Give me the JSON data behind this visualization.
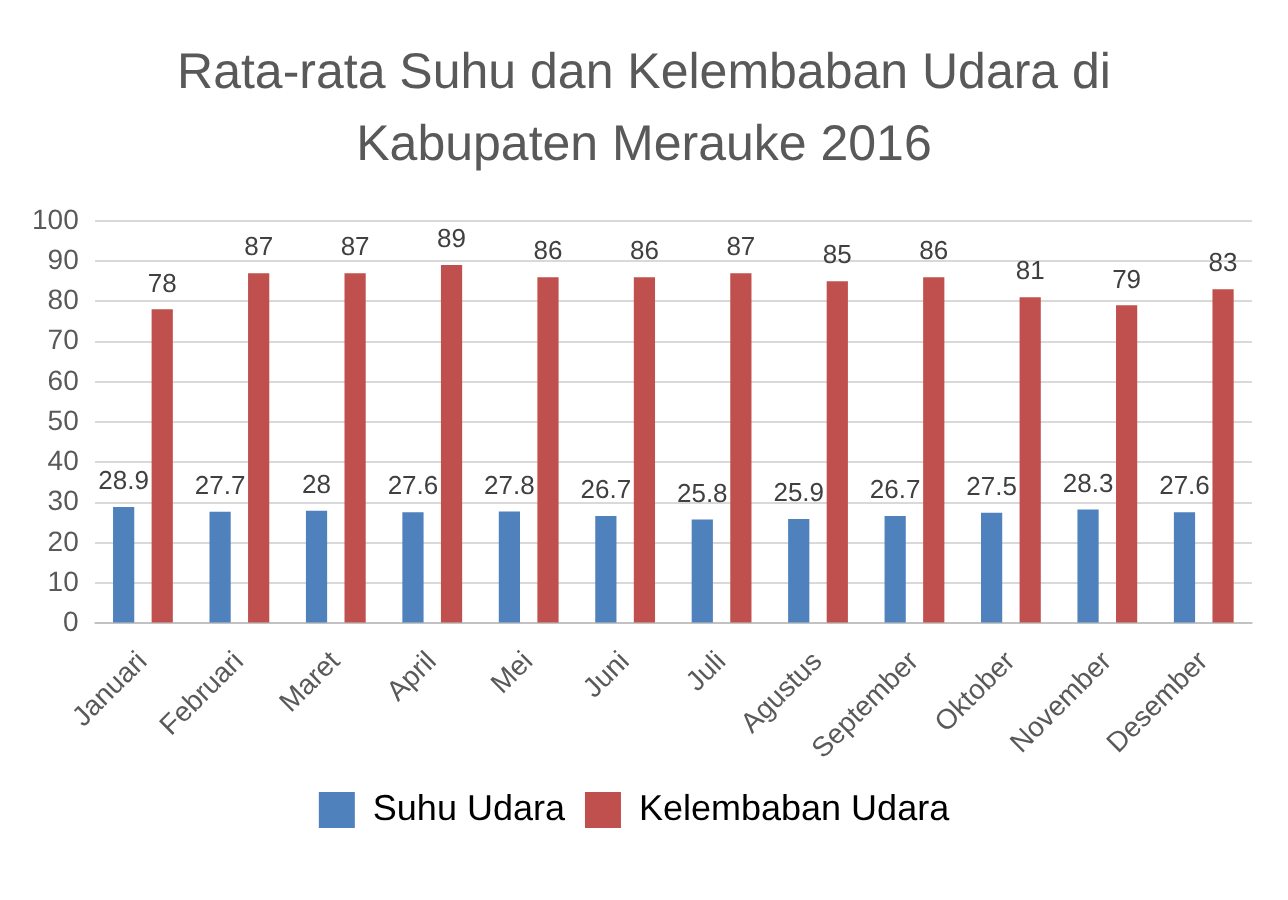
{
  "chart_data": {
    "type": "bar",
    "title": "Rata-rata Suhu dan Kelembaban Udara di Kabupaten Merauke 2016",
    "categories": [
      "Januari",
      "Februari",
      "Maret",
      "April",
      "Mei",
      "Juni",
      "Juli",
      "Agustus",
      "September",
      "Oktober",
      "November",
      "Desember"
    ],
    "series": [
      {
        "name": "Suhu Udara",
        "color": "#4f81bd",
        "values": [
          28.9,
          27.7,
          28,
          27.6,
          27.8,
          26.7,
          25.8,
          25.9,
          26.7,
          27.5,
          28.3,
          27.6
        ]
      },
      {
        "name": "Kelembaban Udara",
        "color": "#c0504d",
        "values": [
          78,
          87,
          87,
          89,
          86,
          86,
          87,
          85,
          86,
          81,
          79,
          83
        ]
      }
    ],
    "ylim": [
      0,
      100
    ],
    "yticks": [
      0,
      10,
      20,
      30,
      40,
      50,
      60,
      70,
      80,
      90,
      100
    ],
    "grid": "y",
    "legend": "bottom",
    "data_labels": true
  }
}
